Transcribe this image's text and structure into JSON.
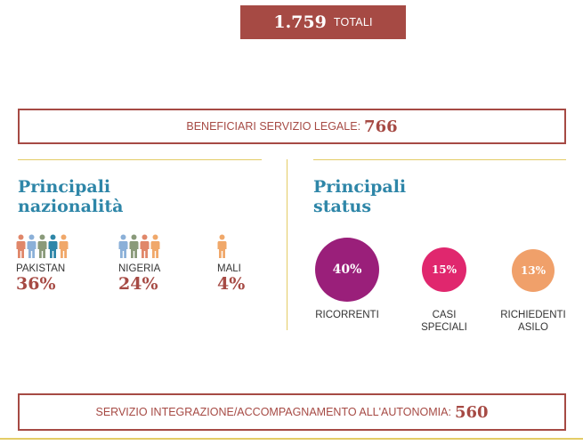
{
  "total": {
    "number": "1.759",
    "label": "TOTALI"
  },
  "legal": {
    "label": "BENEFICIARI SERVIZIO LEGALE:",
    "value": "766"
  },
  "nationalities": {
    "title_line1": "Principali",
    "title_line2": "nazionalità",
    "items": [
      {
        "country": "PAKISTAN",
        "percent": "36%",
        "people_colors": [
          "#e0876a",
          "#8bb0d8",
          "#8a9a7a",
          "#2e86a8",
          "#f0a86a"
        ]
      },
      {
        "country": "NIGERIA",
        "percent": "24%",
        "people_colors": [
          "#8bb0d8",
          "#8a9a7a",
          "#e0876a",
          "#f0a86a"
        ]
      },
      {
        "country": "MALI",
        "percent": "4%",
        "people_colors": [
          "#f0a86a"
        ]
      }
    ]
  },
  "statuses": {
    "title_line1": "Principali",
    "title_line2": "status",
    "items": [
      {
        "percent": "40%",
        "label_line1": "RICORRENTI",
        "label_line2": "",
        "color": "#9a1f7a"
      },
      {
        "percent": "15%",
        "label_line1": "CASI",
        "label_line2": "SPECIALI",
        "color": "#e0276e"
      },
      {
        "percent": "13%",
        "label_line1": "RICHIEDENTI",
        "label_line2": "ASILO",
        "color": "#f0a06a"
      }
    ]
  },
  "integration": {
    "label": "SERVIZIO INTEGRAZIONE/ACCOMPAGNAMENTO ALL'AUTONOMIA:",
    "value": "560"
  }
}
